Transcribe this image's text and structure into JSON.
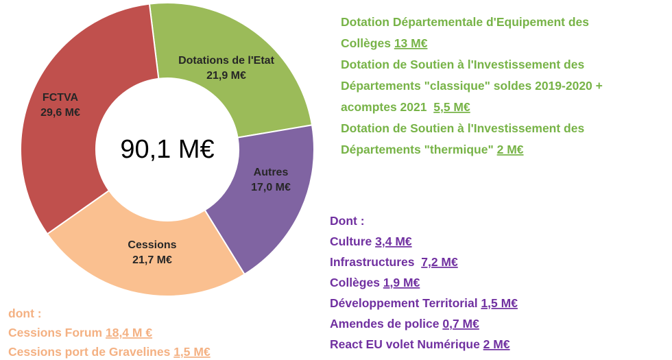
{
  "chart_data": {
    "type": "pie",
    "donut": true,
    "categories": [
      "Dotations de l'Etat",
      "Autres",
      "Cessions",
      "FCTVA"
    ],
    "values": [
      21.9,
      17.0,
      21.7,
      29.6
    ],
    "value_labels": [
      "21,9 M€",
      "17,0 M€",
      "21,7 M€",
      "29,6 M€"
    ],
    "colors": [
      "#9bbb59",
      "#8064a2",
      "#fac090",
      "#c0504d"
    ],
    "center_label": "90,1 M€",
    "annotations": [
      {
        "color": "#77b347",
        "lines": [
          {
            "text": "Dotation Départementale d'Equipement des"
          },
          {
            "text": "Collèges ",
            "amount": "13 M€"
          },
          {
            "text": "Dotation de Soutien à l'Investissement des"
          },
          {
            "text": "Départements \"classique\" soldes 2019-2020 +"
          },
          {
            "text": "acomptes 2021  ",
            "amount": "5,5 M€"
          },
          {
            "text": "Dotation de Soutien à l'Investissement des"
          },
          {
            "text": "Départements \"thermique\" ",
            "amount": "2 M€"
          }
        ]
      },
      {
        "color": "#7030a0",
        "lines": [
          {
            "text": "Dont :"
          },
          {
            "text": "Culture ",
            "amount": "3,4 M€"
          },
          {
            "text": "Infrastructures  ",
            "amount": "7,2 M€"
          },
          {
            "text": "Collèges ",
            "amount": "1,9 M€"
          },
          {
            "text": "Développement Territorial ",
            "amount": "1,5 M€"
          },
          {
            "text": "Amendes de police ",
            "amount": "0,7 M€"
          },
          {
            "text": "React EU volet Numérique ",
            "amount": "2 M€"
          }
        ]
      },
      {
        "color": "#f4b183",
        "lines": [
          {
            "text": "dont :"
          },
          {
            "text": "Cessions Forum ",
            "amount": "18,4 M €"
          },
          {
            "text": "Cessions port de Gravelines ",
            "amount": "1,5 M€"
          }
        ]
      }
    ]
  }
}
